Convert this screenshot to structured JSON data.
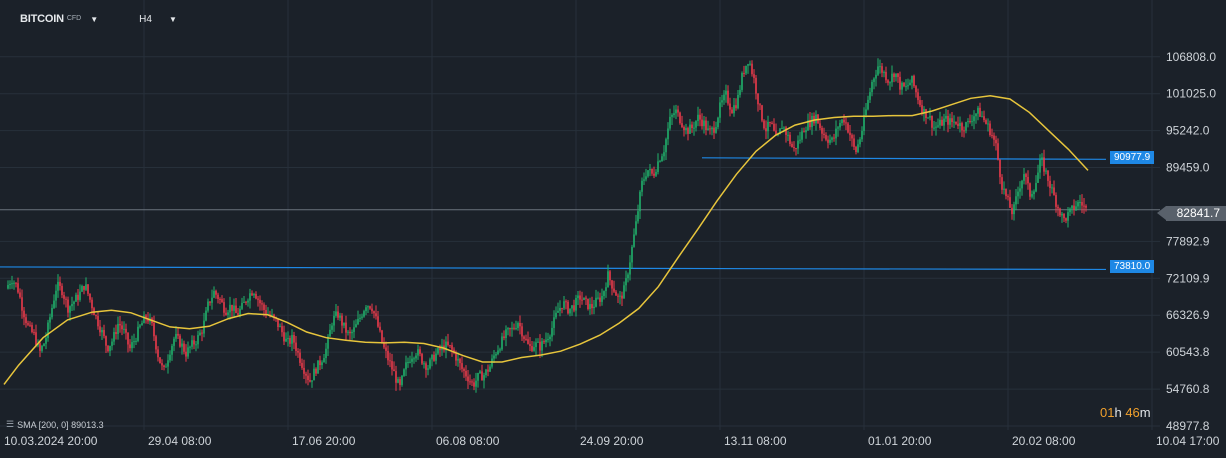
{
  "toolbar": {
    "symbol": "BITCOIN",
    "symbol_suffix": "CFD",
    "timeframe": "H4"
  },
  "indicator": {
    "legend_text": "SMA  [200,  0]  89013.3"
  },
  "countdown": {
    "hours": "01",
    "hours_unit": "h",
    "minutes": "46",
    "minutes_unit": "m"
  },
  "price_lines": {
    "upper": "90977.9",
    "lower": "73810.0",
    "current": "82841.7"
  },
  "colors": {
    "background": "#1b2129",
    "grid": "#27303a",
    "up_candle": "#20b26c",
    "down_candle": "#ef3a4b",
    "sma": "#e7c53c",
    "horizontal_line": "#1e88e5",
    "current_line": "#6b737c"
  },
  "chart_data": {
    "type": "candlestick",
    "interval": "H4",
    "y_ticks": [
      "106808.0",
      "101025.0",
      "95242.0",
      "89459.0",
      "77892.9",
      "72109.9",
      "66326.9",
      "60543.8",
      "54760.8",
      "48977.8"
    ],
    "x_ticks": [
      "10.03.2024  20:00",
      "29.04  08:00",
      "17.06  20:00",
      "06.08  08:00",
      "24.09  20:00",
      "13.11  08:00",
      "01.01  20:00",
      "20.02  08:00",
      "10.04  17:00"
    ],
    "ylim": [
      48977.8,
      111000
    ],
    "horizontal_lines": [
      90977.9,
      73810.0
    ],
    "current_price": 82841.7,
    "sma": {
      "period": 200,
      "shift": 0,
      "last_value": 89013.3
    },
    "close_path": [
      [
        0,
        70500
      ],
      [
        1,
        72100
      ],
      [
        2,
        70800
      ],
      [
        3,
        67200
      ],
      [
        4,
        64300
      ],
      [
        5,
        63200
      ],
      [
        6,
        60500
      ],
      [
        7,
        62400
      ],
      [
        8,
        66800
      ],
      [
        9,
        71000
      ],
      [
        10,
        70200
      ],
      [
        11,
        67500
      ],
      [
        12,
        68400
      ],
      [
        13,
        69500
      ],
      [
        14,
        71200
      ],
      [
        15,
        68600
      ],
      [
        16,
        66000
      ],
      [
        17,
        63800
      ],
      [
        18,
        61200
      ],
      [
        19,
        62500
      ],
      [
        20,
        65200
      ],
      [
        21,
        63700
      ],
      [
        22,
        61000
      ],
      [
        23,
        62800
      ],
      [
        24,
        64800
      ],
      [
        25,
        66200
      ],
      [
        26,
        64500
      ],
      [
        27,
        60200
      ],
      [
        28,
        57300
      ],
      [
        29,
        60500
      ],
      [
        30,
        63000
      ],
      [
        31,
        62000
      ],
      [
        32,
        60400
      ],
      [
        33,
        61600
      ],
      [
        34,
        62600
      ],
      [
        35,
        64300
      ],
      [
        36,
        68200
      ],
      [
        37,
        70000
      ],
      [
        38,
        68800
      ],
      [
        39,
        67100
      ],
      [
        40,
        67800
      ],
      [
        41,
        66400
      ],
      [
        42,
        67600
      ],
      [
        43,
        69300
      ],
      [
        44,
        70400
      ],
      [
        45,
        68500
      ],
      [
        46,
        67000
      ],
      [
        47,
        66200
      ],
      [
        48,
        65400
      ],
      [
        49,
        63800
      ],
      [
        50,
        61900
      ],
      [
        51,
        62700
      ],
      [
        52,
        60100
      ],
      [
        53,
        57900
      ],
      [
        54,
        56000
      ],
      [
        55,
        57800
      ],
      [
        56,
        59200
      ],
      [
        57,
        61200
      ],
      [
        58,
        65500
      ],
      [
        59,
        66500
      ],
      [
        60,
        64600
      ],
      [
        61,
        63000
      ],
      [
        62,
        64200
      ],
      [
        63,
        66100
      ],
      [
        64,
        68100
      ],
      [
        65,
        67800
      ],
      [
        66,
        65000
      ],
      [
        67,
        61500
      ],
      [
        68,
        59300
      ],
      [
        69,
        57200
      ],
      [
        70,
        54800
      ],
      [
        71,
        58200
      ],
      [
        72,
        60000
      ],
      [
        73,
        60700
      ],
      [
        74,
        59300
      ],
      [
        75,
        58200
      ],
      [
        76,
        59800
      ],
      [
        77,
        60700
      ],
      [
        78,
        61600
      ],
      [
        79,
        61200
      ],
      [
        80,
        59800
      ],
      [
        81,
        58000
      ],
      [
        82,
        56800
      ],
      [
        83,
        55400
      ],
      [
        84,
        56700
      ],
      [
        85,
        57000
      ],
      [
        86,
        58200
      ],
      [
        87,
        60500
      ],
      [
        88,
        62000
      ],
      [
        89,
        63500
      ],
      [
        90,
        64100
      ],
      [
        91,
        65400
      ],
      [
        92,
        63200
      ],
      [
        93,
        61200
      ],
      [
        94,
        61800
      ],
      [
        95,
        61400
      ],
      [
        96,
        62600
      ],
      [
        97,
        64200
      ],
      [
        98,
        66800
      ],
      [
        99,
        68300
      ],
      [
        100,
        67200
      ],
      [
        101,
        67800
      ],
      [
        102,
        69200
      ],
      [
        103,
        68300
      ],
      [
        104,
        67500
      ],
      [
        105,
        68500
      ],
      [
        106,
        69300
      ],
      [
        107,
        72600
      ],
      [
        108,
        70600
      ],
      [
        109,
        68600
      ],
      [
        110,
        70500
      ],
      [
        111,
        75300
      ],
      [
        112,
        80600
      ],
      [
        113,
        86800
      ],
      [
        114,
        89200
      ],
      [
        115,
        88200
      ],
      [
        116,
        90600
      ],
      [
        117,
        92400
      ],
      [
        118,
        96800
      ],
      [
        119,
        98400
      ],
      [
        120,
        96800
      ],
      [
        121,
        95200
      ],
      [
        122,
        95700
      ],
      [
        123,
        97300
      ],
      [
        124,
        96500
      ],
      [
        125,
        94800
      ],
      [
        126,
        95800
      ],
      [
        127,
        99100
      ],
      [
        128,
        100800
      ],
      [
        129,
        98500
      ],
      [
        130,
        99800
      ],
      [
        131,
        104300
      ],
      [
        132,
        106600
      ],
      [
        133,
        103200
      ],
      [
        134,
        98600
      ],
      [
        135,
        95400
      ],
      [
        136,
        96300
      ],
      [
        137,
        93500
      ],
      [
        138,
        96200
      ],
      [
        139,
        94300
      ],
      [
        140,
        92100
      ],
      [
        141,
        93700
      ],
      [
        142,
        95900
      ],
      [
        143,
        96600
      ],
      [
        144,
        97500
      ],
      [
        145,
        95200
      ],
      [
        146,
        94000
      ],
      [
        147,
        93600
      ],
      [
        148,
        96200
      ],
      [
        149,
        97100
      ],
      [
        150,
        94800
      ],
      [
        151,
        91700
      ],
      [
        152,
        94600
      ],
      [
        153,
        98900
      ],
      [
        154,
        103000
      ],
      [
        155,
        105400
      ],
      [
        156,
        104400
      ],
      [
        157,
        103000
      ],
      [
        158,
        104600
      ],
      [
        159,
        102100
      ],
      [
        160,
        101900
      ],
      [
        161,
        103200
      ],
      [
        162,
        100700
      ],
      [
        163,
        98300
      ],
      [
        164,
        97600
      ],
      [
        165,
        95700
      ],
      [
        166,
        96200
      ],
      [
        167,
        97000
      ],
      [
        168,
        96500
      ],
      [
        169,
        96700
      ],
      [
        170,
        95800
      ],
      [
        171,
        96300
      ],
      [
        172,
        97700
      ],
      [
        173,
        98200
      ],
      [
        174,
        96700
      ],
      [
        175,
        95200
      ],
      [
        176,
        92800
      ],
      [
        177,
        86900
      ],
      [
        178,
        84300
      ],
      [
        179,
        82200
      ],
      [
        180,
        86100
      ],
      [
        181,
        88700
      ],
      [
        182,
        85200
      ],
      [
        183,
        86800
      ],
      [
        184,
        90700
      ],
      [
        185,
        88300
      ],
      [
        186,
        85700
      ],
      [
        187,
        83300
      ],
      [
        188,
        81200
      ],
      [
        189,
        82200
      ],
      [
        190,
        83400
      ],
      [
        191,
        84100
      ],
      [
        192,
        82841.7
      ]
    ],
    "sma_path": [
      [
        0,
        55500
      ],
      [
        3,
        58500
      ],
      [
        8,
        62800
      ],
      [
        13,
        65600
      ],
      [
        18,
        66800
      ],
      [
        22,
        67100
      ],
      [
        26,
        66700
      ],
      [
        30,
        65600
      ],
      [
        34,
        64500
      ],
      [
        38,
        64200
      ],
      [
        42,
        64600
      ],
      [
        46,
        65800
      ],
      [
        50,
        66600
      ],
      [
        54,
        66400
      ],
      [
        58,
        65200
      ],
      [
        62,
        63700
      ],
      [
        66,
        62800
      ],
      [
        70,
        62400
      ],
      [
        74,
        62100
      ],
      [
        78,
        62000
      ],
      [
        82,
        62100
      ],
      [
        86,
        61900
      ],
      [
        90,
        61200
      ],
      [
        94,
        60000
      ],
      [
        98,
        59000
      ],
      [
        102,
        59000
      ],
      [
        106,
        59700
      ],
      [
        110,
        60100
      ],
      [
        114,
        60700
      ],
      [
        118,
        61800
      ],
      [
        122,
        63200
      ],
      [
        126,
        65100
      ],
      [
        130,
        67400
      ],
      [
        134,
        70800
      ],
      [
        138,
        75300
      ],
      [
        142,
        79700
      ],
      [
        146,
        84200
      ],
      [
        150,
        88400
      ],
      [
        154,
        92000
      ],
      [
        158,
        94500
      ],
      [
        162,
        96100
      ],
      [
        166,
        96900
      ],
      [
        170,
        97300
      ],
      [
        174,
        97500
      ],
      [
        178,
        97500
      ],
      [
        182,
        97600
      ],
      [
        186,
        97600
      ],
      [
        190,
        98300
      ],
      [
        194,
        99300
      ],
      [
        198,
        100300
      ],
      [
        202,
        100700
      ],
      [
        206,
        100200
      ],
      [
        210,
        98100
      ],
      [
        214,
        95200
      ],
      [
        218,
        92300
      ],
      [
        222,
        89013.3
      ]
    ]
  }
}
